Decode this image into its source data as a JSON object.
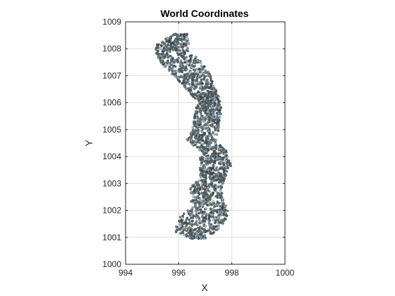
{
  "chart_data": {
    "type": "scatter",
    "title": "World Coordinates",
    "xlabel": "X",
    "ylabel": "Y",
    "xlim": [
      994,
      1000
    ],
    "ylim": [
      1000,
      1009
    ],
    "xticks": [
      994,
      996,
      998,
      1000
    ],
    "yticks": [
      1000,
      1001,
      1002,
      1003,
      1004,
      1005,
      1006,
      1007,
      1008,
      1009
    ],
    "grid": true,
    "axis_equal": true,
    "colors": [
      "#5a6a78",
      "#6f8a9e",
      "#8fb4c8",
      "#4b5a5c",
      "#7a6e66",
      "#a9c6d6",
      "#3f4a52",
      "#6a7e70"
    ],
    "shape_outline": [
      {
        "y": 1008.55,
        "x_min": 995.8,
        "x_max": 996.35
      },
      {
        "y": 1008.2,
        "x_min": 995.2,
        "x_max": 996.4
      },
      {
        "y": 1007.9,
        "x_min": 995.1,
        "x_max": 996.4
      },
      {
        "y": 1007.5,
        "x_min": 995.3,
        "x_max": 996.9
      },
      {
        "y": 1007.0,
        "x_min": 995.8,
        "x_max": 997.2
      },
      {
        "y": 1006.5,
        "x_min": 996.3,
        "x_max": 997.4
      },
      {
        "y": 1006.0,
        "x_min": 996.7,
        "x_max": 997.6
      },
      {
        "y": 1005.5,
        "x_min": 996.6,
        "x_max": 997.6
      },
      {
        "y": 1005.0,
        "x_min": 996.5,
        "x_max": 997.5
      },
      {
        "y": 1004.6,
        "x_min": 996.3,
        "x_max": 997.4
      },
      {
        "y": 1004.2,
        "x_min": 996.8,
        "x_max": 997.8
      },
      {
        "y": 1003.7,
        "x_min": 996.8,
        "x_max": 998.0
      },
      {
        "y": 1003.3,
        "x_min": 996.8,
        "x_max": 997.8
      },
      {
        "y": 1002.8,
        "x_min": 996.4,
        "x_max": 997.6
      },
      {
        "y": 1002.4,
        "x_min": 996.5,
        "x_max": 997.7
      },
      {
        "y": 1002.0,
        "x_min": 996.3,
        "x_max": 997.9
      },
      {
        "y": 1001.6,
        "x_min": 995.9,
        "x_max": 997.8
      },
      {
        "y": 1001.2,
        "x_min": 995.9,
        "x_max": 997.4
      },
      {
        "y": 1000.95,
        "x_min": 996.5,
        "x_max": 997.0
      }
    ],
    "point_count": 1900
  }
}
